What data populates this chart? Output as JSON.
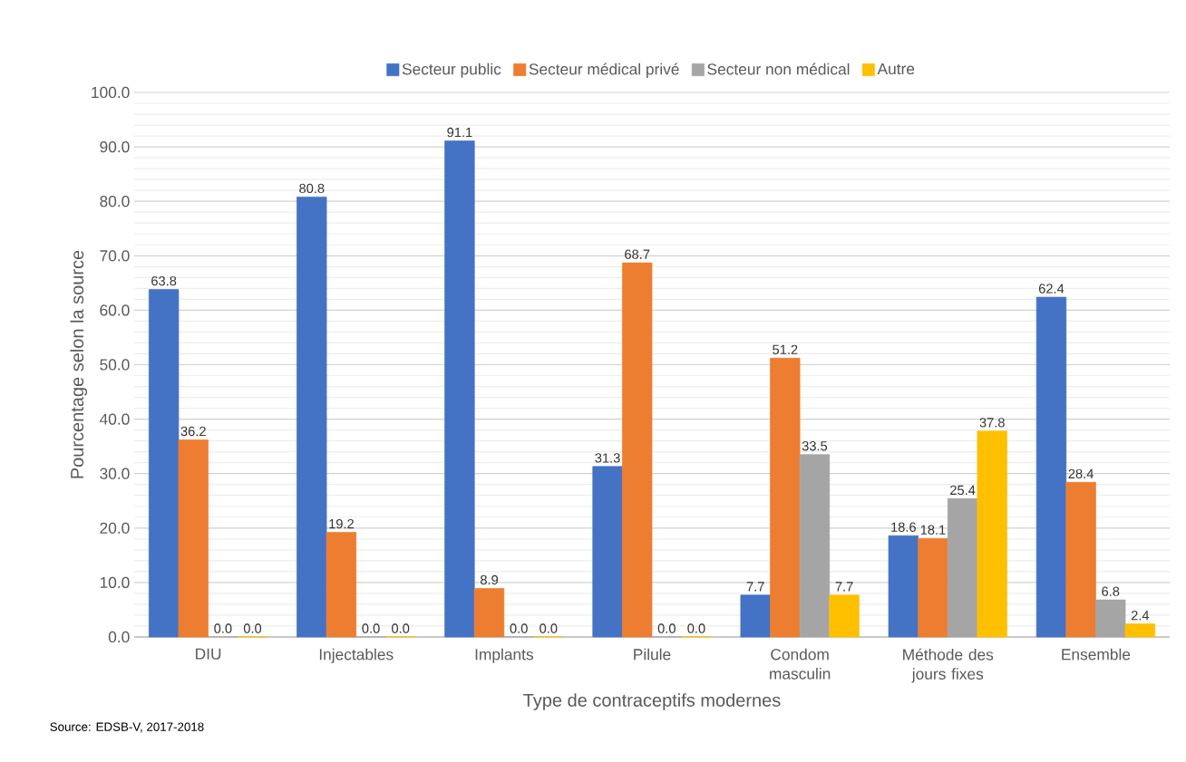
{
  "chart_data": {
    "type": "bar",
    "xlabel": "Type de contraceptifs modernes",
    "ylabel": "Pourcentage selon la source",
    "annotations": [
      "Source: EDSB-V, 2017-2018"
    ],
    "categories": [
      "DIU",
      "Injectables",
      "Implants",
      "Pilule",
      "Condom masculin",
      "Méthode des jours fixes",
      "Ensemble"
    ],
    "series": [
      {
        "name": "Secteur public",
        "color": "#4472c4",
        "values": [
          63.8,
          80.8,
          91.1,
          31.3,
          7.7,
          18.6,
          62.4
        ],
        "value_labels": [
          "63.8",
          "80.8",
          "91.1",
          "31.3",
          "7.7",
          "18.6",
          "62.4"
        ]
      },
      {
        "name": "Secteur médical privé",
        "color": "#ed7d31",
        "values": [
          36.2,
          19.2,
          8.9,
          68.7,
          51.2,
          18.1,
          28.4
        ],
        "value_labels": [
          "36.2",
          "19.2",
          "8.9",
          "68.7",
          "51.2",
          "18.1",
          "28.4"
        ]
      },
      {
        "name": "Secteur non médical",
        "color": "#a5a5a5",
        "values": [
          0,
          0,
          0,
          0,
          33.5,
          25.4,
          6.8
        ],
        "value_labels": [
          "0.0",
          "0.0",
          "0.0",
          "0.0",
          "33.5",
          "25.4",
          "6.8"
        ]
      },
      {
        "name": "Autre",
        "color": "#ffc000",
        "values": [
          0,
          0,
          0,
          0,
          7.7,
          37.8,
          2.4
        ],
        "value_labels": [
          "0.0",
          "0.0",
          "0.0",
          "0.0",
          "7.7",
          "37.8",
          "2.4"
        ]
      }
    ],
    "ylim": [
      0,
      100
    ],
    "yticks": [
      {
        "value": 0,
        "label": "0.0"
      },
      {
        "value": 10,
        "label": "10.0"
      },
      {
        "value": 20,
        "label": "20.0"
      },
      {
        "value": 30,
        "label": "30.0"
      },
      {
        "value": 40,
        "label": "40.0"
      },
      {
        "value": 50,
        "label": "50.0"
      },
      {
        "value": 60,
        "label": "60.0"
      },
      {
        "value": 70,
        "label": "70.0"
      },
      {
        "value": 80,
        "label": "80.0"
      },
      {
        "value": 90,
        "label": "90.0"
      },
      {
        "value": 100,
        "label": "100.0"
      }
    ],
    "grid": "y",
    "legend": "top"
  }
}
